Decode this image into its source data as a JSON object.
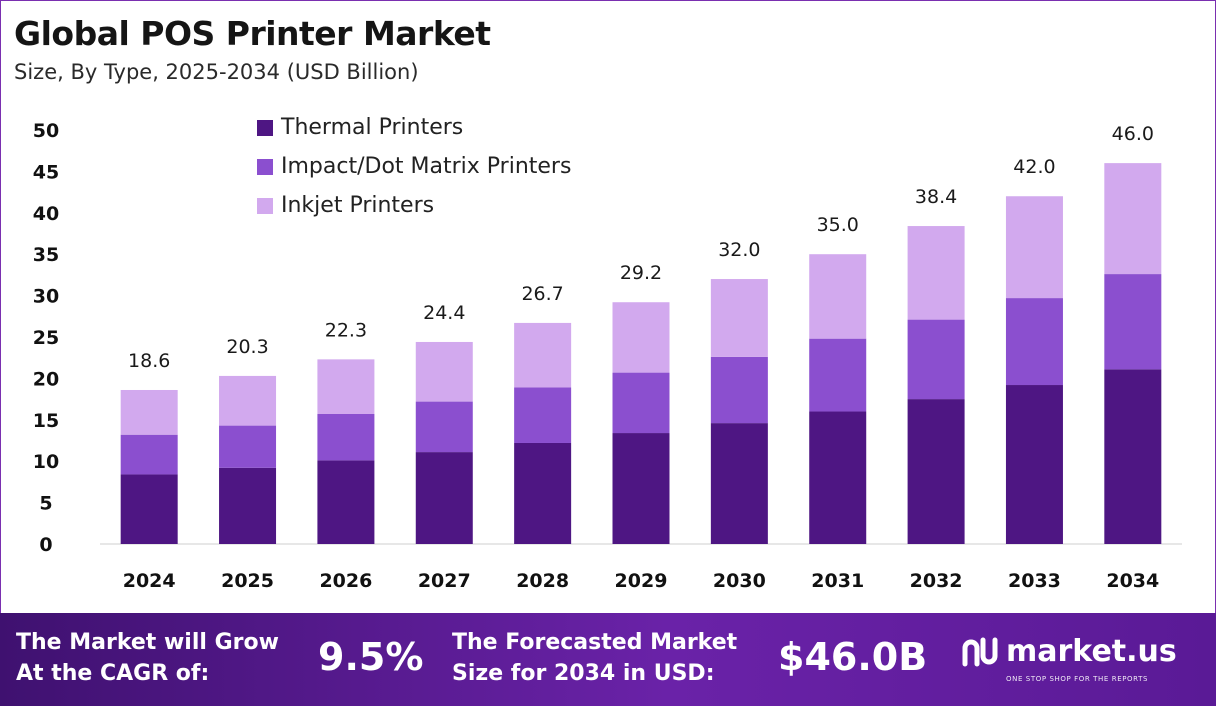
{
  "header": {
    "title": "Global POS Printer Market",
    "subtitle": "Size, By Type, 2025-2034 (USD Billion)"
  },
  "chart_data": {
    "type": "bar",
    "stacked": true,
    "categories": [
      "2024",
      "2025",
      "2026",
      "2027",
      "2028",
      "2029",
      "2030",
      "2031",
      "2032",
      "2033",
      "2034"
    ],
    "series": [
      {
        "name": "Thermal Printers",
        "color": "#4e1683",
        "values": [
          8.4,
          9.2,
          10.1,
          11.1,
          12.2,
          13.4,
          14.6,
          16.0,
          17.5,
          19.2,
          21.1
        ]
      },
      {
        "name": "Impact/Dot Matrix Printers",
        "color": "#8b4fcf",
        "values": [
          4.8,
          5.1,
          5.6,
          6.1,
          6.7,
          7.3,
          8.0,
          8.8,
          9.6,
          10.5,
          11.5
        ]
      },
      {
        "name": "Inkjet Printers",
        "color": "#d2a9ee",
        "values": [
          5.4,
          6.0,
          6.6,
          7.2,
          7.8,
          8.5,
          9.4,
          10.2,
          11.3,
          12.3,
          13.4
        ]
      }
    ],
    "totals": [
      "18.6",
      "20.3",
      "22.3",
      "24.4",
      "26.7",
      "29.2",
      "32.0",
      "35.0",
      "38.4",
      "42.0",
      "46.0"
    ],
    "ylim": [
      0,
      50
    ],
    "yticks": [
      0,
      5,
      10,
      15,
      20,
      25,
      30,
      35,
      40,
      45,
      50
    ],
    "grid": false,
    "legend_position": "top-left"
  },
  "footer": {
    "cagr_label": "The Market will Grow\nAt the CAGR of:",
    "cagr_value": "9.5%",
    "forecast_label": "The Forecasted Market\nSize for 2034 in USD:",
    "forecast_value": "$46.0B",
    "logo_name": "market.us",
    "logo_tagline": "ONE STOP SHOP FOR THE REPORTS"
  }
}
